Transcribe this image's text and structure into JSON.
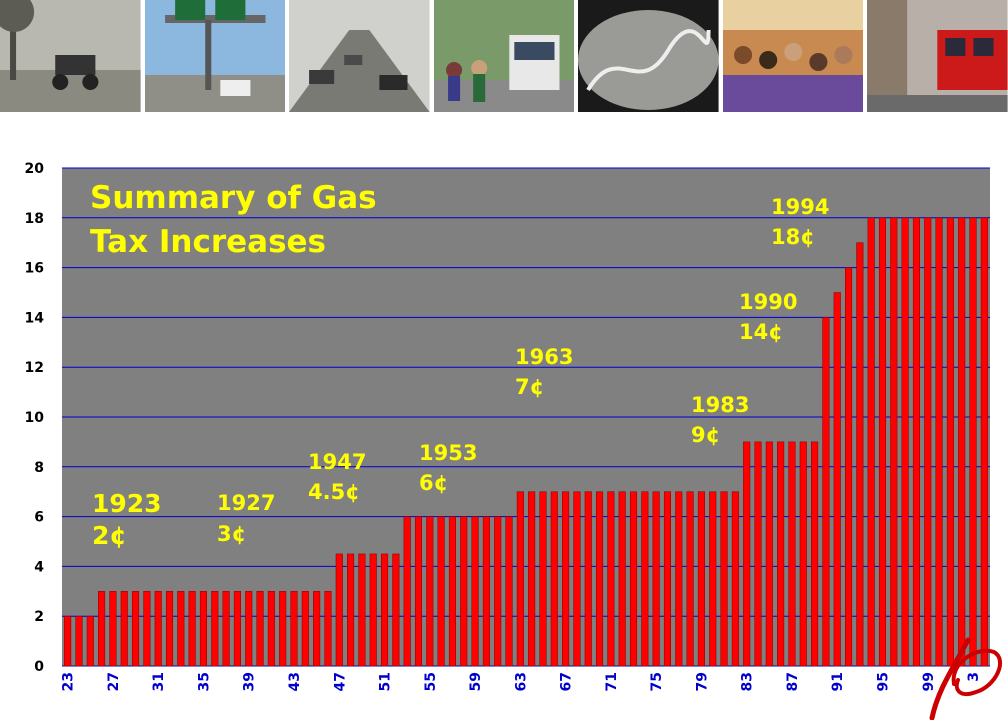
{
  "colors": {
    "plot_bg": "#808080",
    "bar": "#ff0000",
    "bar_edge": "#800000",
    "grid": "#0000cc",
    "annotation": "#ffff00",
    "x_tick": "#0000cc",
    "logo": "#cc0000"
  },
  "photos": [
    {
      "name": "early-car-photo",
      "icon": "vintage-car"
    },
    {
      "name": "freeway-sign-photo",
      "icon": "highway-signs"
    },
    {
      "name": "freeway-traffic-photo",
      "icon": "traffic"
    },
    {
      "name": "bus-stop-photo",
      "icon": "bus"
    },
    {
      "name": "winding-road-photo",
      "icon": "winding-road"
    },
    {
      "name": "crowd-platform-photo",
      "icon": "crowd"
    },
    {
      "name": "trolley-photo",
      "icon": "red-trolley"
    }
  ],
  "chart_data": {
    "type": "bar",
    "title_lines": [
      "Summary of Gas",
      "Tax Increases"
    ],
    "xlabel": "",
    "ylabel": "",
    "ylim": [
      0,
      20
    ],
    "y_ticks": [
      0,
      2,
      4,
      6,
      8,
      10,
      12,
      14,
      16,
      18,
      20
    ],
    "grid": true,
    "x_tick_labels": [
      "23",
      "27",
      "31",
      "35",
      "39",
      "43",
      "47",
      "51",
      "55",
      "59",
      "63",
      "67",
      "71",
      "75",
      "79",
      "83",
      "87",
      "91",
      "95",
      "99",
      "3"
    ],
    "categories": [
      "1923",
      "1924",
      "1925",
      "1926",
      "1927",
      "1928",
      "1929",
      "1930",
      "1931",
      "1932",
      "1933",
      "1934",
      "1935",
      "1936",
      "1937",
      "1938",
      "1939",
      "1940",
      "1941",
      "1942",
      "1943",
      "1944",
      "1945",
      "1946",
      "1947",
      "1948",
      "1949",
      "1950",
      "1951",
      "1952",
      "1953",
      "1954",
      "1955",
      "1956",
      "1957",
      "1958",
      "1959",
      "1960",
      "1961",
      "1962",
      "1963",
      "1964",
      "1965",
      "1966",
      "1967",
      "1968",
      "1969",
      "1970",
      "1971",
      "1972",
      "1973",
      "1974",
      "1975",
      "1976",
      "1977",
      "1978",
      "1979",
      "1980",
      "1981",
      "1982",
      "1983",
      "1984",
      "1985",
      "1986",
      "1987",
      "1988",
      "1989",
      "1990",
      "1991",
      "1992",
      "1993",
      "1994",
      "1995",
      "1996",
      "1997",
      "1998",
      "1999",
      "2000",
      "2001",
      "2002",
      "2003",
      "2004"
    ],
    "values": [
      2,
      2,
      2,
      3,
      3,
      3,
      3,
      3,
      3,
      3,
      3,
      3,
      3,
      3,
      3,
      3,
      3,
      3,
      3,
      3,
      3,
      3,
      3,
      3,
      4.5,
      4.5,
      4.5,
      4.5,
      4.5,
      4.5,
      6,
      6,
      6,
      6,
      6,
      6,
      6,
      6,
      6,
      6,
      7,
      7,
      7,
      7,
      7,
      7,
      7,
      7,
      7,
      7,
      7,
      7,
      7,
      7,
      7,
      7,
      7,
      7,
      7,
      7,
      9,
      9,
      9,
      9,
      9,
      9,
      9,
      14,
      15,
      16,
      17,
      18,
      18,
      18,
      18,
      18,
      18,
      18,
      18,
      18,
      18,
      18
    ],
    "annotations": [
      {
        "year": "1923",
        "rate": "2¢"
      },
      {
        "year": "1927",
        "rate": "3¢"
      },
      {
        "year": "1947",
        "rate": "4.5¢"
      },
      {
        "year": "1953",
        "rate": "6¢"
      },
      {
        "year": "1963",
        "rate": "7¢"
      },
      {
        "year": "1983",
        "rate": "9¢"
      },
      {
        "year": "1990",
        "rate": "14¢"
      },
      {
        "year": "1994",
        "rate": "18¢"
      }
    ]
  }
}
